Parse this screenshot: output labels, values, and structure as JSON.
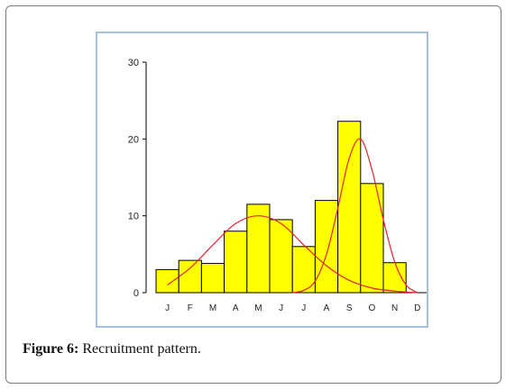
{
  "figure": {
    "label": "Figure 6:",
    "caption": " Recruitment pattern."
  },
  "colors": {
    "bar_fill": "#ffff00",
    "bar_stroke": "#000000",
    "curve": "#e2262c",
    "frame": "#a9bfe0"
  },
  "chart_data": {
    "type": "bar",
    "categories": [
      "J",
      "F",
      "M",
      "A",
      "M",
      "J",
      "J",
      "A",
      "S",
      "O",
      "N",
      "D"
    ],
    "values": [
      3,
      4.2,
      3.8,
      8,
      11.5,
      9.5,
      6,
      12,
      22.3,
      14.2,
      3.9,
      0
    ],
    "ylim": [
      0,
      30
    ],
    "yticks": [
      0,
      10,
      20,
      30
    ],
    "xlabel": "",
    "ylabel": "",
    "title": "",
    "grid": false,
    "overlay_curves": [
      {
        "type": "line",
        "x": [
          0,
          1,
          2,
          3,
          4,
          5,
          6,
          7,
          8,
          9,
          10,
          11
        ],
        "values": [
          1,
          3.2,
          6.2,
          9,
          10,
          9,
          6.2,
          3.5,
          1.6,
          0.6,
          0.2,
          0
        ]
      },
      {
        "type": "line",
        "x": [
          5.5,
          6,
          6.5,
          7,
          7.5,
          8,
          8.5,
          9,
          9.5,
          10,
          10.5,
          11
        ],
        "values": [
          0,
          0.3,
          1.5,
          5,
          11,
          17.5,
          20,
          16,
          9.5,
          4,
          1,
          0
        ]
      }
    ]
  }
}
